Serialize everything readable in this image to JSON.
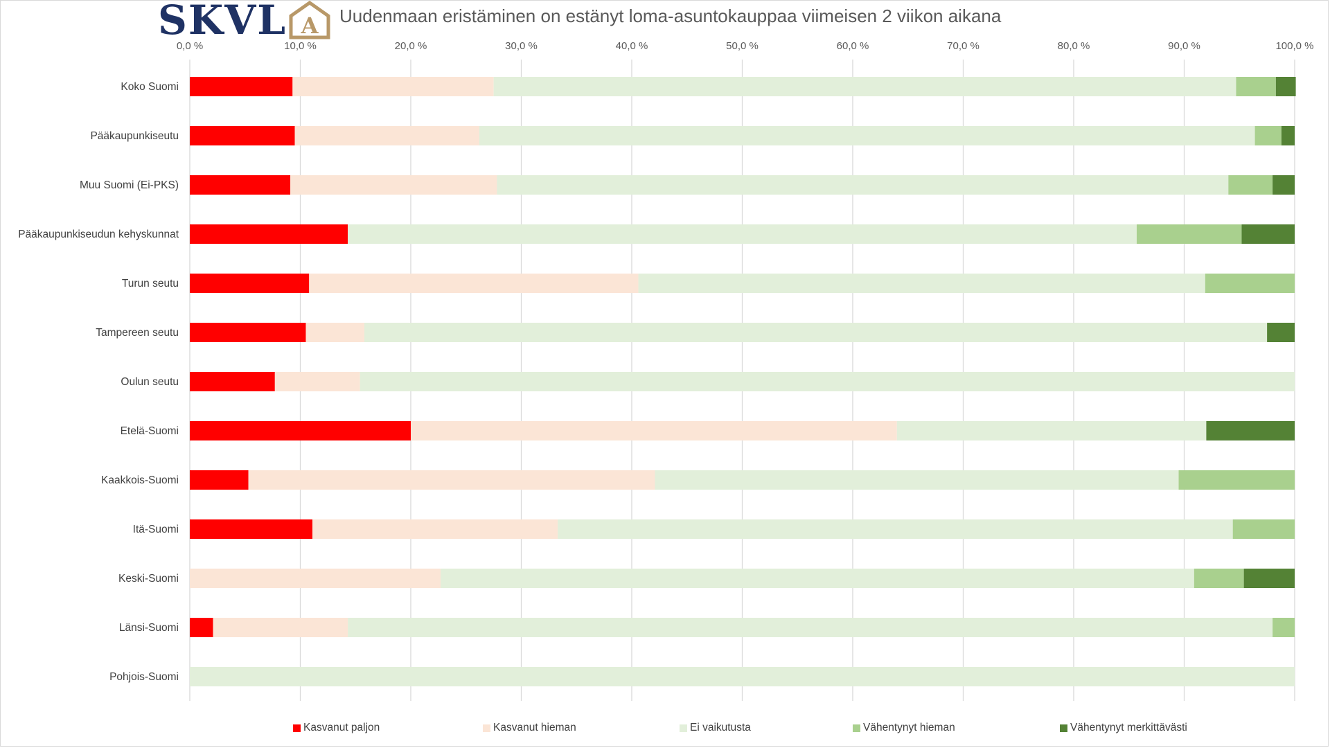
{
  "logo": {
    "text": "SKVL",
    "house_letter": "A",
    "color": "#1f3264",
    "house_color": "#b89868"
  },
  "chart_data": {
    "type": "bar",
    "orientation": "horizontal-stacked-100",
    "title": "Uudenmaan eristäminen on estänyt loma-asuntokauppaa viimeisen 2 viikon aikana",
    "x_ticks": [
      "0,0 %",
      "10,0 %",
      "20,0 %",
      "30,0 %",
      "40,0 %",
      "50,0 %",
      "60,0 %",
      "70,0 %",
      "80,0 %",
      "90,0 %",
      "100,0 %"
    ],
    "xlim": [
      0,
      100
    ],
    "x_axis_position": "top",
    "grid": true,
    "legend_position": "bottom",
    "categories": [
      "Koko Suomi",
      "Pääkaupunkiseutu",
      "Muu Suomi (Ei-PKS)",
      "Pääkaupunkiseudun kehyskunnat",
      "Turun seutu",
      "Tampereen seutu",
      "Oulun seutu",
      "Etelä-Suomi",
      "Kaakkois-Suomi",
      "Itä-Suomi",
      "Keski-Suomi",
      "Länsi-Suomi",
      "Pohjois-Suomi"
    ],
    "series": [
      {
        "name": "Kasvanut paljon",
        "color": "#ff0000",
        "values": [
          9.3,
          9.5,
          9.1,
          14.3,
          10.8,
          10.5,
          7.7,
          20.0,
          5.3,
          11.1,
          0.0,
          2.1,
          0.0
        ]
      },
      {
        "name": "Kasvanut hieman",
        "color": "#fbe5d6",
        "values": [
          18.2,
          16.7,
          18.7,
          0.0,
          29.8,
          5.3,
          7.7,
          44.0,
          36.8,
          22.2,
          22.7,
          12.2,
          0.0
        ]
      },
      {
        "name": "Ei vaikutusta",
        "color": "#e2efda",
        "values": [
          67.2,
          70.2,
          66.2,
          71.4,
          51.3,
          81.7,
          84.6,
          28.0,
          47.4,
          61.1,
          68.2,
          83.7,
          100.0
        ]
      },
      {
        "name": "Vähentynyt hieman",
        "color": "#a9d08e",
        "values": [
          3.6,
          2.4,
          4.0,
          9.5,
          8.1,
          0.0,
          0.0,
          0.0,
          10.5,
          5.6,
          4.5,
          2.0,
          0.0
        ]
      },
      {
        "name": "Vähentynyt merkittävästi",
        "color": "#548235",
        "values": [
          1.8,
          1.2,
          2.0,
          4.8,
          0.0,
          2.5,
          0.0,
          8.0,
          0.0,
          0.0,
          4.6,
          0.0,
          0.0
        ]
      }
    ]
  }
}
